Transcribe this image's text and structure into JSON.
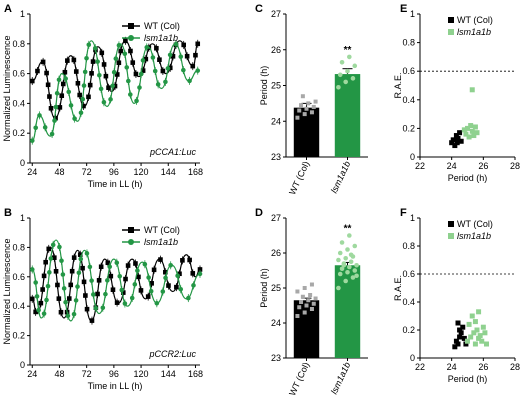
{
  "chart_data": [
    {
      "panel": "A",
      "type": "line",
      "xlabel": "Time in LL (h)",
      "ylabel": "Normalized Luminescence",
      "xlim": [
        22,
        172
      ],
      "ylim": [
        0,
        1
      ],
      "xticks": [
        24,
        48,
        72,
        96,
        120,
        144,
        168
      ],
      "yticks": [
        0,
        0.2,
        0.4,
        0.6,
        0.8,
        1.0
      ],
      "annotation": "pCCA1:Luc",
      "legend": "top-right",
      "series": [
        {
          "name": "WT (Col)",
          "marker": "square",
          "color": "#000000",
          "x": [
            24,
            33,
            44,
            58,
            70,
            82,
            94,
            106,
            118,
            130,
            142,
            154,
            166,
            170
          ],
          "y": [
            0.55,
            0.68,
            0.3,
            0.72,
            0.38,
            0.78,
            0.48,
            0.82,
            0.58,
            0.8,
            0.6,
            0.82,
            0.65,
            0.8
          ]
        },
        {
          "name": "lsm1a1b",
          "marker": "circle",
          "color": "#239645",
          "x": [
            24,
            30,
            40,
            50,
            64,
            76,
            90,
            102,
            114,
            126,
            138,
            150,
            162,
            170
          ],
          "y": [
            0.15,
            0.32,
            0.18,
            0.6,
            0.28,
            0.82,
            0.38,
            0.8,
            0.4,
            0.78,
            0.5,
            0.8,
            0.55,
            0.62
          ]
        }
      ]
    },
    {
      "panel": "B",
      "type": "line",
      "xlabel": "Time in LL (h)",
      "ylabel": "Normalized Luminescence",
      "xlim": [
        22,
        172
      ],
      "ylim": [
        0,
        1
      ],
      "xticks": [
        24,
        48,
        72,
        96,
        120,
        144,
        168
      ],
      "yticks": [
        0,
        0.2,
        0.4,
        0.6,
        0.8,
        1.0
      ],
      "annotation": "pCCR2:Luc",
      "legend": "top-right",
      "series": [
        {
          "name": "WT (Col)",
          "marker": "square",
          "color": "#000000",
          "x": [
            24,
            28,
            40,
            52,
            64,
            76,
            88,
            100,
            112,
            124,
            136,
            148,
            160,
            168,
            172
          ],
          "y": [
            0.45,
            0.35,
            0.8,
            0.32,
            0.78,
            0.3,
            0.72,
            0.42,
            0.72,
            0.45,
            0.72,
            0.5,
            0.75,
            0.6,
            0.65
          ]
        },
        {
          "name": "lsm1a1b",
          "marker": "circle",
          "color": "#239645",
          "x": [
            24,
            32,
            45,
            58,
            70,
            83,
            96,
            108,
            121,
            134,
            147,
            160,
            172
          ],
          "y": [
            0.65,
            0.32,
            0.85,
            0.3,
            0.78,
            0.35,
            0.72,
            0.4,
            0.7,
            0.42,
            0.68,
            0.45,
            0.62
          ]
        }
      ]
    },
    {
      "panel": "C",
      "type": "bar",
      "ylabel": "Period (h)",
      "ylim": [
        23,
        27
      ],
      "yticks": [
        23,
        24,
        25,
        26,
        27
      ],
      "categories": [
        "WT (Col)",
        "lsm1a1b"
      ],
      "values": [
        24.38,
        25.32
      ],
      "sem": [
        0.12,
        0.15
      ],
      "colors": [
        "#000000",
        "#239645"
      ],
      "points": [
        [
          24.1,
          24.2,
          24.25,
          24.3,
          24.35,
          24.4,
          24.45,
          24.5,
          24.55,
          24.7
        ],
        [
          24.95,
          25.1,
          25.2,
          25.3,
          25.4,
          25.55,
          25.65,
          25.8
        ]
      ],
      "significance": "**"
    },
    {
      "panel": "D",
      "type": "bar",
      "ylabel": "Period (h)",
      "ylim": [
        23,
        27
      ],
      "yticks": [
        23,
        24,
        25,
        26,
        27
      ],
      "categories": [
        "WT (Col)",
        "lsm1a1b"
      ],
      "values": [
        24.65,
        25.65
      ],
      "sem": [
        0.06,
        0.08
      ],
      "colors": [
        "#000000",
        "#239645"
      ],
      "points": [
        [
          24.2,
          24.3,
          24.4,
          24.45,
          24.5,
          24.55,
          24.6,
          24.65,
          24.7,
          24.75,
          24.8,
          24.9,
          25.0,
          25.1
        ],
        [
          25.0,
          25.2,
          25.3,
          25.4,
          25.45,
          25.5,
          25.55,
          25.6,
          25.65,
          25.7,
          25.75,
          25.8,
          25.85,
          25.9,
          26.0,
          26.1,
          26.2,
          26.3,
          26.5,
          25.35,
          25.65,
          25.95
        ]
      ],
      "significance": "**"
    },
    {
      "panel": "E",
      "type": "scatter",
      "xlabel": "Period (h)",
      "ylabel": "R.A.E.",
      "xlim": [
        22,
        28
      ],
      "ylim": [
        0,
        1
      ],
      "xticks": [
        22,
        24,
        26,
        28
      ],
      "yticks": [
        0,
        0.2,
        0.4,
        0.6,
        0.8,
        1.0
      ],
      "threshold": 0.6,
      "legend": "top-left",
      "series": [
        {
          "name": "WT (Col)",
          "color": "#000000",
          "x": [
            24.0,
            24.1,
            24.2,
            24.3,
            24.35,
            24.4,
            24.5,
            24.6
          ],
          "y": [
            0.1,
            0.12,
            0.08,
            0.15,
            0.1,
            0.13,
            0.17,
            0.11
          ]
        },
        {
          "name": "lsm1a1b",
          "color": "#8fd18f",
          "x": [
            24.9,
            25.0,
            25.1,
            25.2,
            25.3,
            25.4,
            25.5,
            25.6,
            25.3,
            24.8
          ],
          "y": [
            0.16,
            0.2,
            0.14,
            0.22,
            0.18,
            0.15,
            0.21,
            0.17,
            0.47,
            0.19
          ]
        }
      ]
    },
    {
      "panel": "F",
      "type": "scatter",
      "xlabel": "Period (h)",
      "ylabel": "R.A.E.",
      "xlim": [
        22,
        28
      ],
      "ylim": [
        0,
        1
      ],
      "xticks": [
        22,
        24,
        26,
        28
      ],
      "yticks": [
        0,
        0.2,
        0.4,
        0.6,
        0.8,
        1.0
      ],
      "threshold": 0.6,
      "legend": "top-left",
      "series": [
        {
          "name": "WT (Col)",
          "color": "#000000",
          "x": [
            24.2,
            24.3,
            24.4,
            24.5,
            24.5,
            24.6,
            24.7,
            24.8,
            24.4,
            24.9
          ],
          "y": [
            0.08,
            0.12,
            0.1,
            0.15,
            0.2,
            0.18,
            0.22,
            0.14,
            0.25,
            0.1
          ]
        },
        {
          "name": "lsm1a1b",
          "color": "#8fd18f",
          "x": [
            25.0,
            25.2,
            25.4,
            25.5,
            25.6,
            25.7,
            25.8,
            25.9,
            26.0,
            26.2,
            25.3,
            25.5,
            25.7,
            26.1,
            25.1
          ],
          "y": [
            0.12,
            0.15,
            0.18,
            0.1,
            0.2,
            0.14,
            0.16,
            0.12,
            0.22,
            0.1,
            0.3,
            0.26,
            0.33,
            0.18,
            0.24
          ]
        }
      ]
    }
  ]
}
